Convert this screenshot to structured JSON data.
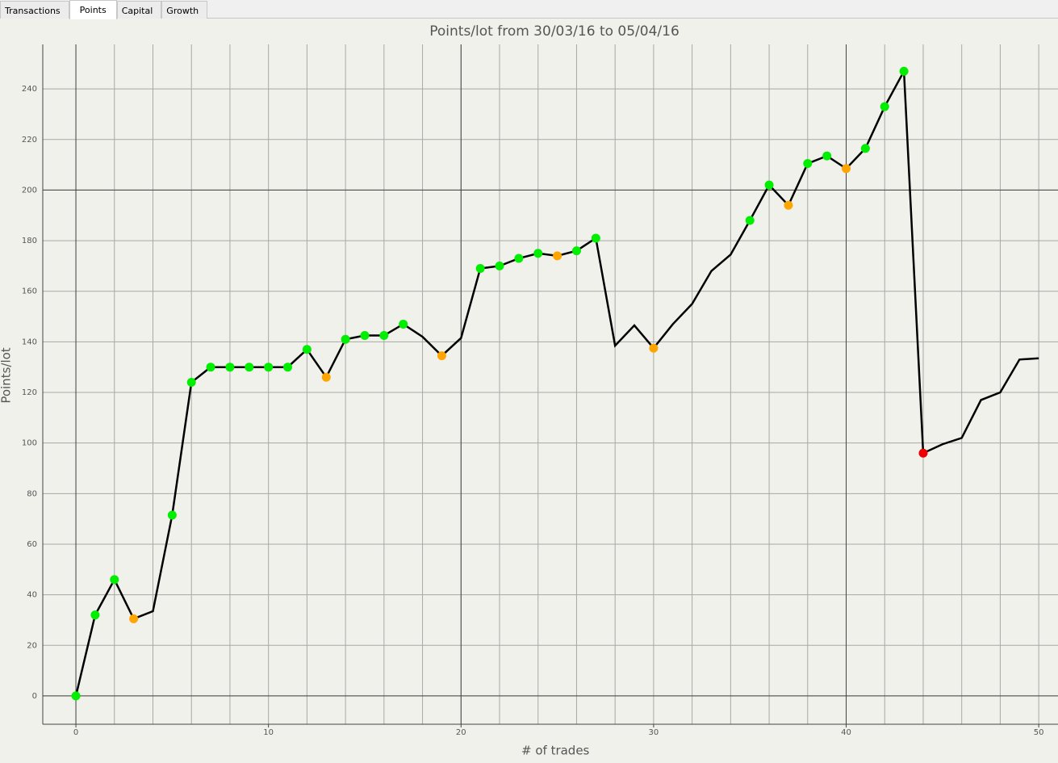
{
  "tabs": [
    "Transactions",
    "Points",
    "Capital",
    "Growth"
  ],
  "active_tab": 1,
  "chart_data": {
    "type": "line",
    "title": "Points/lot from 30/03/16 to 05/04/16",
    "x_label": "# of trades",
    "y_label": "Points/lot",
    "x": [
      0,
      1,
      2,
      3,
      4,
      5,
      6,
      7,
      8,
      9,
      10,
      11,
      12,
      13,
      14,
      15,
      16,
      17,
      18,
      19,
      20,
      21,
      22,
      23,
      24,
      25,
      26,
      27,
      28,
      29,
      30,
      31,
      32,
      33,
      34,
      35,
      36,
      37,
      38,
      39,
      40,
      41,
      42,
      43,
      44,
      45,
      46,
      47,
      48,
      49,
      50
    ],
    "series": [
      {
        "color": "#000000",
        "values": [
          0,
          32,
          46,
          30.5,
          33.5,
          71.5,
          124,
          130,
          130,
          130,
          130,
          130,
          137,
          126,
          141,
          142.5,
          142.5,
          147,
          142,
          134.5,
          141.5,
          169,
          170,
          173,
          175,
          174,
          176,
          181,
          138.5,
          146.5,
          137.5,
          147,
          155,
          168,
          174.5,
          188,
          202,
          194,
          210.5,
          213.5,
          208.5,
          216.5,
          233,
          247,
          96,
          99.5,
          102,
          117,
          120,
          133,
          133.5
        ],
        "marker_colors": [
          "#00ee00",
          "#00ee00",
          "#00ee00",
          "#ffa500",
          null,
          "#00ee00",
          "#00ee00",
          "#00ee00",
          "#00ee00",
          "#00ee00",
          "#00ee00",
          "#00ee00",
          "#00ee00",
          "#ffa500",
          "#00ee00",
          "#00ee00",
          "#00ee00",
          "#00ee00",
          null,
          "#ffa500",
          null,
          "#00ee00",
          "#00ee00",
          "#00ee00",
          "#00ee00",
          "#ffa500",
          "#00ee00",
          "#00ee00",
          null,
          null,
          "#ffa500",
          null,
          null,
          null,
          null,
          "#00ee00",
          "#00ee00",
          "#ffa500",
          "#00ee00",
          "#00ee00",
          "#ffa500",
          "#00ee00",
          "#00ee00",
          "#00ee00",
          "#ee0000",
          null,
          null,
          null,
          null,
          null,
          null
        ]
      }
    ],
    "xlim": [
      -1.72,
      51
    ],
    "ylim": [
      -11.2,
      257.6
    ],
    "xticks": [
      0,
      10,
      20,
      30,
      40,
      50
    ],
    "yticks": [
      0,
      20,
      40,
      60,
      80,
      100,
      120,
      140,
      160,
      180,
      200,
      220,
      240
    ],
    "x_grid": [
      0,
      2,
      4,
      6,
      8,
      10,
      12,
      14,
      16,
      18,
      20,
      22,
      24,
      26,
      28,
      30,
      32,
      34,
      36,
      38,
      40,
      42,
      44,
      46,
      48,
      50
    ],
    "x_major_grid": [
      0,
      20,
      40
    ],
    "y_major_grid": [
      0,
      200
    ],
    "grid": true
  }
}
